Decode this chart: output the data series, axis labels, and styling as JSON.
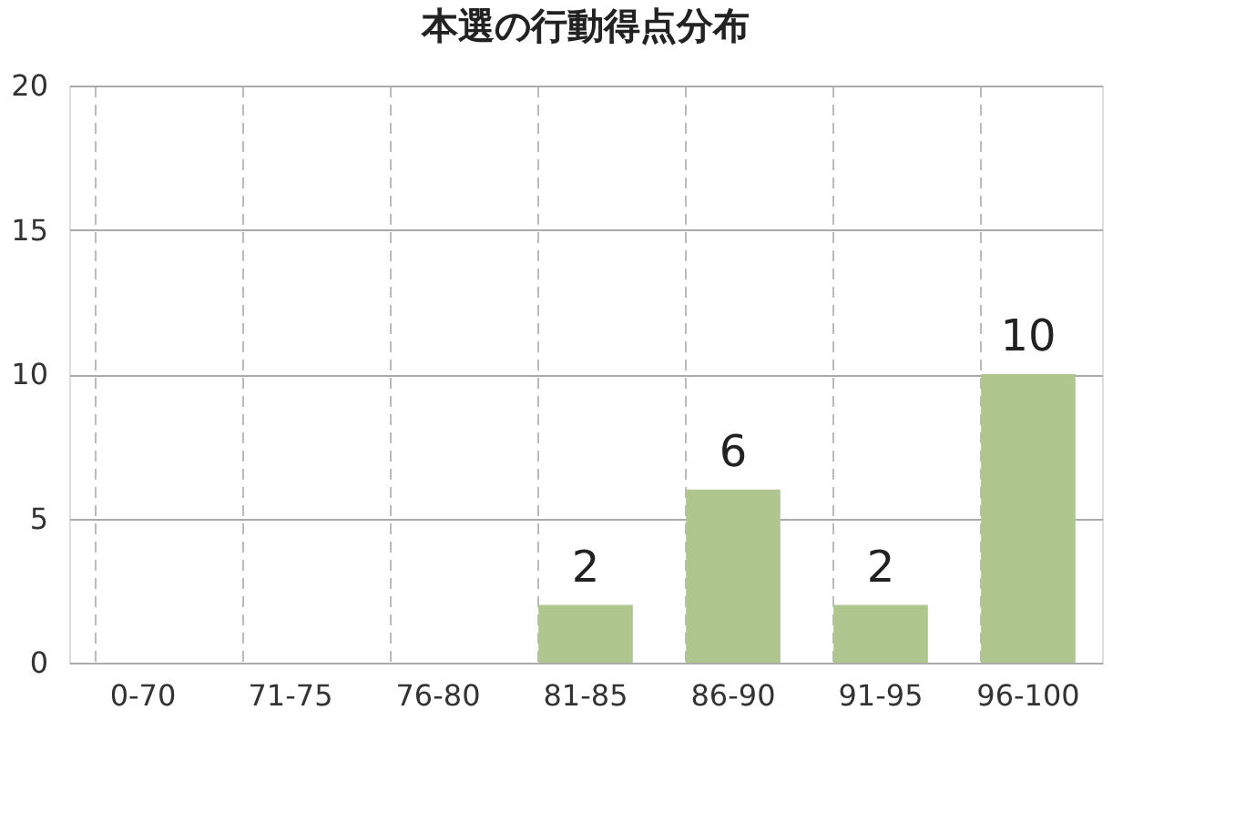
{
  "chart_data": {
    "type": "bar",
    "title": "本選の行動得点分布",
    "categories": [
      "0-70",
      "71-75",
      "76-80",
      "81-85",
      "86-90",
      "91-95",
      "96-100"
    ],
    "values": [
      0,
      0,
      0,
      2,
      6,
      2,
      10
    ],
    "value_labels": [
      null,
      null,
      null,
      "2",
      "6",
      "2",
      "10"
    ],
    "color": "#b0c68f",
    "ylim": [
      0,
      20
    ],
    "yticks": [
      0,
      5,
      10,
      15,
      20
    ],
    "grid": true
  }
}
